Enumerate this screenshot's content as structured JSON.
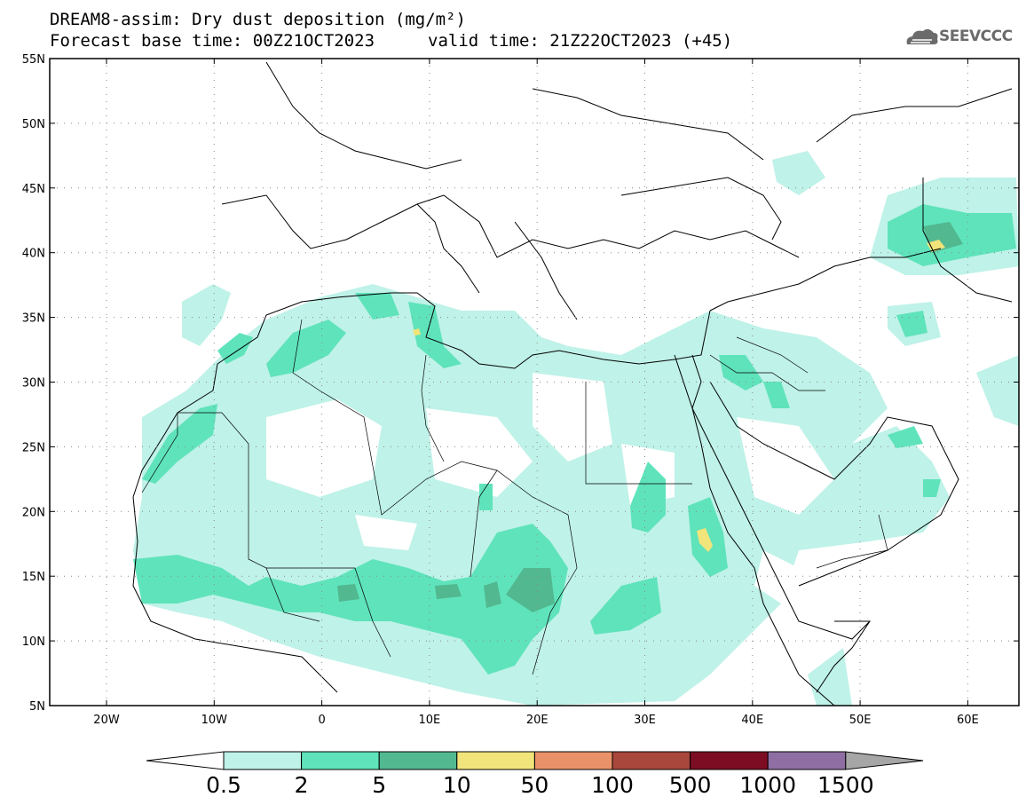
{
  "header": {
    "title_line1": "DREAM8-assim: Dry dust deposition (mg/m²)",
    "title_line2": "Forecast base time: 00Z21OCT2023",
    "valid_time": "valid time: 21Z22OCT2023 (+45)",
    "logo_text": "SEEVCCC",
    "logo_icon": "cloud-icon"
  },
  "axes": {
    "lat_labels": [
      "55N",
      "50N",
      "45N",
      "40N",
      "35N",
      "30N",
      "25N",
      "20N",
      "15N",
      "10N",
      "5N"
    ],
    "lon_labels": [
      "20W",
      "10W",
      "0",
      "10E",
      "20E",
      "30E",
      "40E",
      "50E",
      "60E"
    ]
  },
  "colorbar": {
    "labels": [
      "0.5",
      "2",
      "5",
      "10",
      "50",
      "100",
      "500",
      "1000",
      "1500"
    ],
    "colors": [
      "#bff2e8",
      "#5fe3bb",
      "#52b890",
      "#f1e47a",
      "#e9926a",
      "#a9473c",
      "#7d0d22",
      "#8f6fa3"
    ],
    "under_color": "#ffffff",
    "over_color": "#a6a6a6"
  },
  "map": {
    "background": "#ffffff",
    "border_color": "#000000"
  }
}
